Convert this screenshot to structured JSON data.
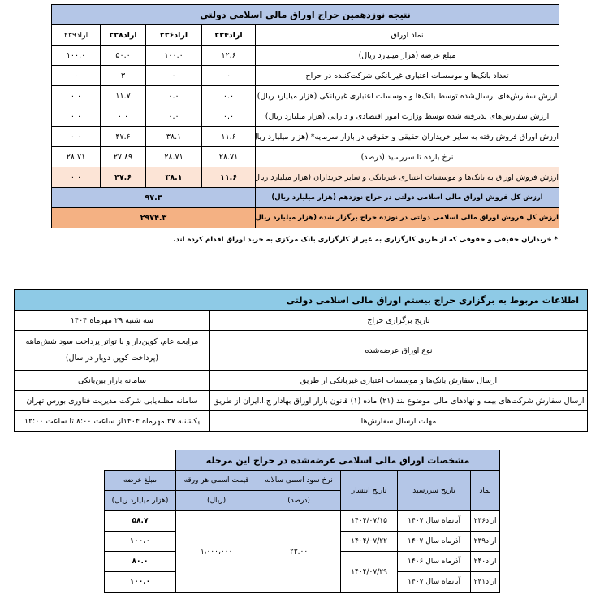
{
  "table1": {
    "title": "نتیجه نوزدهمین حراج اوراق مالی اسلامی دولتی",
    "rows": [
      {
        "label": "نماد اوراق",
        "values": [
          "اراد۲۳۴",
          "اراد۲۳۶",
          "اراد۲۳۸",
          "اراد۲۳۹"
        ]
      },
      {
        "label": "مبلغ عرضه (هزار میلیارد ریال)",
        "values": [
          "۱۲.۶",
          "۱۰۰.۰",
          "۵۰.۰",
          "۱۰۰.۰"
        ]
      },
      {
        "label": "تعداد بانک‌ها و موسسات اعتباری غیربانکی شرکت‌کننده در حراج",
        "values": [
          "۰",
          "۰",
          "۳",
          "۰"
        ]
      },
      {
        "label": "ارزش سفارش‌های ارسال‌شده توسط بانک‌ها و موسسات اعتباری غیربانکی (هزار میلیارد ریال)",
        "values": [
          "۰.۰",
          "۰.۰",
          "۱۱.۷",
          "۰.۰"
        ]
      },
      {
        "label": "ارزش سفارش‌های پذیرفته شده توسط وزارت امور اقتصادی و دارایی (هزار میلیارد ریال)",
        "values": [
          "۰.۰",
          "۰.۰",
          "۰.۰",
          "۰.۰"
        ]
      },
      {
        "label": "ارزش اوراق فروش رفته به سایر خریداران حقیقی و حقوقی در بازار سرمایه* (هزار میلیارد ریال)",
        "values": [
          "۱۱.۶",
          "۳۸.۱",
          "۴۷.۶",
          "۰.۰"
        ]
      },
      {
        "label": "نرخ بازده تا سررسید (درصد)",
        "values": [
          "۲۸.۷۱",
          "۲۸.۷۱",
          "۲۷.۸۹",
          "۲۸.۷۱"
        ]
      },
      {
        "label": "ارزش فروش اوراق به بانک‌ها و موسسات اعتباری غیربانکی و سایر خریداران (هزار میلیارد ریال)",
        "values": [
          "۱۱.۶",
          "۳۸.۱",
          "۴۷.۶",
          "۰.۰"
        ]
      }
    ],
    "total19_label": "ارزش کل فروش اوراق مالی اسلامی دولتی در حراج نوزدهم (هزار میلیارد ریال)",
    "total19_value": "۹۷.۳",
    "totalall_label": "ارزش کل فروش اوراق مالی اسلامی دولتی در نوزده حراج برگزار شده (هزار میلیارد ریال)",
    "totalall_value": "۲۹۷۴.۳",
    "footnote": "* خریداران حقیقی و حقوقی که از طریق کارگزاری به غیر از کارگزاری بانک مرکزی به خرید اوراق اقدام کرده اند."
  },
  "table2": {
    "title": "اطلاعات مربوط به برگزاری حراج بیستم اوراق مالی اسلامی دولتی",
    "rows": [
      {
        "label": "تاریخ برگزاری حراج",
        "value": "سه شنبه ۲۹ مهرماه ۱۴۰۴"
      },
      {
        "label": "نوع اوراق عرضه‌شده",
        "value": "مرابحه عام، کوپن‌دار و با تواتر پرداخت سود شش‌ماهه (پرداخت کوپن دوبار در سال)"
      },
      {
        "label": "ارسال سفارش بانک‌ها و موسسات اعتباری غیربانکی از طریق",
        "value": "سامانه بازار بین‌بانکی"
      },
      {
        "label": "ارسال سفارش شرکت‌های بیمه و نهادهای مالی موضوع بند (۲۱) ماده (۱) قانون بازار اوراق بهادار ج.ا.ایران از طریق",
        "value": "سامانه مظنه‌یابی شرکت مدیریت فناوری بورس تهران"
      },
      {
        "label": "مهلت ارسال سفارش‌ها",
        "value": "یکشنبه ۲۷ مهرماه ۱۴۰۴از ساعت ۸:۰۰ تا ساعت ۱۲:۰۰"
      }
    ]
  },
  "table3": {
    "title": "مشخصات اوراق مالی اسلامی عرضه‌شده در حراج این مرحله",
    "headers": {
      "symbol": "نماد",
      "maturity": "تاریخ سررسید",
      "issue": "تاریخ انتشار",
      "rate": "نرخ سود اسمی سالانه",
      "rate_unit": "(درصد)",
      "price": "قیمت اسمی هر ورقه",
      "price_unit": "(ریال)",
      "amount": "مبلغ عرضه",
      "amount_unit": "(هزار میلیارد ریال)"
    },
    "rows": [
      {
        "symbol": "اراد۲۳۶",
        "maturity": "آبانماه سال ۱۴۰۷",
        "amount": "۵۸.۷"
      },
      {
        "symbol": "اراد۲۳۹",
        "maturity": "آذرماه سال ۱۴۰۷",
        "amount": "۱۰۰.۰"
      },
      {
        "symbol": "اراد۲۴۰",
        "maturity": "آذرماه سال ۱۴۰۶",
        "amount": "۸۰.۰"
      },
      {
        "symbol": "اراد۲۴۱",
        "maturity": "آبانماه سال ۱۴۰۷",
        "amount": "۱۰۰.۰"
      }
    ],
    "issue_dates": [
      "۱۴۰۴/۰۷/۱۵",
      "۱۴۰۴/۰۷/۲۲",
      "۱۴۰۴/۰۷/۲۹"
    ],
    "rate": "۲۳.۰۰",
    "price": "۱،۰۰۰،۰۰۰"
  }
}
